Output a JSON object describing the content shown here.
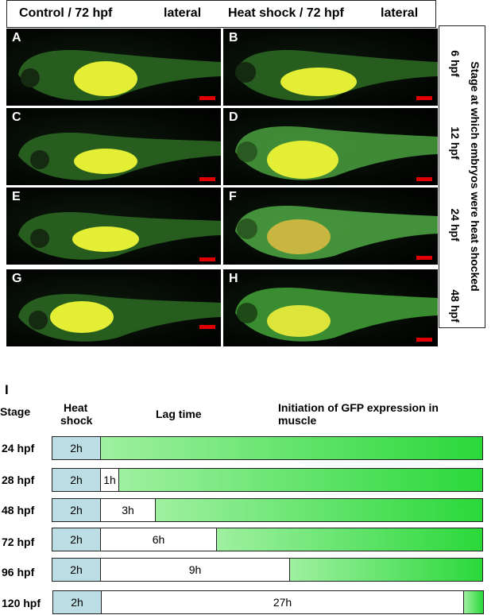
{
  "header": {
    "control": "Control / 72 hpf",
    "control_view": "lateral",
    "heat": "Heat shock / 72 hpf",
    "heat_view": "lateral"
  },
  "panels": {
    "A": "A",
    "B": "B",
    "C": "C",
    "D": "D",
    "E": "E",
    "F": "F",
    "G": "G",
    "H": "H"
  },
  "side": {
    "title": "Stage at which embryos were heat shocked",
    "stages": [
      "6 hpf",
      "12 hpf",
      "24 hpf",
      "48 hpf"
    ]
  },
  "timeline": {
    "label": "I",
    "stage_header": "Stage",
    "heat_header_1": "Heat",
    "heat_header_2": "shock",
    "lag_header": "Lag time",
    "gfp_header_1": "Initiation of GFP expression in",
    "gfp_header_2": "muscle",
    "rows": [
      {
        "stage": "24 hpf",
        "heat": "2h",
        "lag": ""
      },
      {
        "stage": "28 hpf",
        "heat": "2h",
        "lag": "1h"
      },
      {
        "stage": "48 hpf",
        "heat": "2h",
        "lag": "3h"
      },
      {
        "stage": "72 hpf",
        "heat": "2h",
        "lag": "6h"
      },
      {
        "stage": "96 hpf",
        "heat": "2h",
        "lag": "9h"
      },
      {
        "stage": "120 hpf",
        "heat": "2h",
        "lag": "27h"
      }
    ]
  },
  "colors": {
    "heat_segment": "#bcdde3",
    "gfp_start": "#9ff0a0",
    "gfp_end": "#2ad83a",
    "scale_bar": "#e00000"
  }
}
